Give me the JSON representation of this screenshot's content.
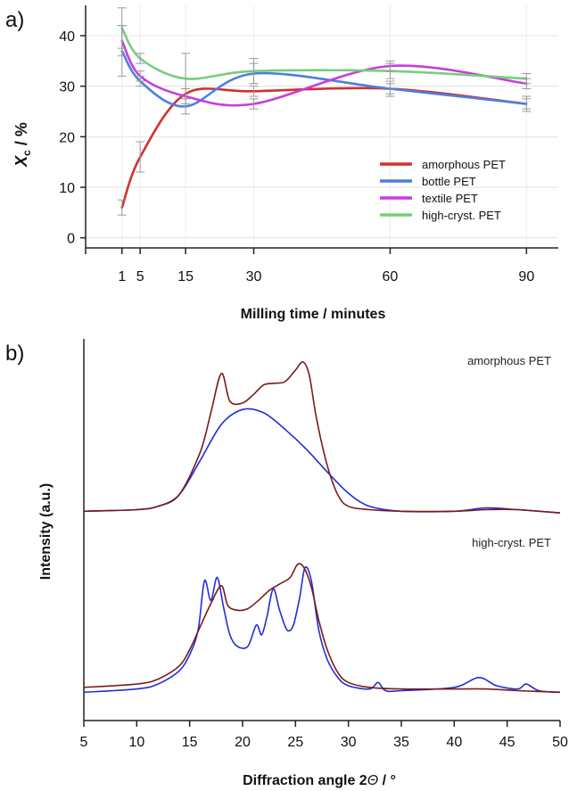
{
  "panel_labels": {
    "a": "a)",
    "b": "b)"
  },
  "chart_data": [
    {
      "type": "line",
      "xlabel": "Milling time / minutes",
      "ylabel": "X",
      "ylabel_sub": "c",
      "ylabel_unit": " / %",
      "x_ticks": [
        1,
        5,
        15,
        30,
        60,
        90
      ],
      "y_ticks": [
        0,
        10,
        20,
        30,
        40
      ],
      "xlim": [
        -7,
        97
      ],
      "ylim": [
        -2,
        46
      ],
      "grid": true,
      "legend_position": "bottom-right",
      "x": [
        1,
        5,
        15,
        30,
        60,
        90
      ],
      "series": [
        {
          "name": "amorphous PET",
          "color": "#d32f2f",
          "values": [
            6,
            16,
            28.5,
            29,
            29.5,
            26.5
          ],
          "errors": [
            1.5,
            3,
            1,
            1,
            1,
            1
          ]
        },
        {
          "name": "bottle PET",
          "color": "#4a7fe0",
          "values": [
            37,
            31,
            26,
            32.5,
            29.5,
            26.5
          ],
          "errors": [
            5,
            1,
            1.5,
            2,
            1.5,
            1.5
          ]
        },
        {
          "name": "textile PET",
          "color": "#c93be0",
          "values": [
            39,
            32,
            28,
            26.5,
            34,
            30.5
          ],
          "errors": [
            3,
            1,
            1.5,
            1,
            1,
            1
          ]
        },
        {
          "name": "high-cryst. PET",
          "color": "#74cf7e",
          "values": [
            41.5,
            35.5,
            31.5,
            33,
            33,
            31.5
          ],
          "errors": [
            4,
            1,
            5,
            2.5,
            1.5,
            1
          ]
        }
      ]
    },
    {
      "type": "line",
      "xlabel": "Diffraction angle 2",
      "xlabel_symbol": "Θ",
      "xlabel_unit": " / °",
      "ylabel": "Intensity (a.u.)",
      "x_ticks": [
        5,
        10,
        15,
        20,
        25,
        30,
        35,
        40,
        45,
        50
      ],
      "xlim": [
        5,
        50
      ],
      "grid": false,
      "groups": [
        {
          "label": "amorphous PET",
          "series": [
            {
              "color": "#1f2fd6",
              "x": [
                5,
                10,
                12,
                14,
                16,
                18,
                20,
                22,
                24,
                26,
                28,
                30,
                32,
                35,
                40,
                43,
                46,
                50
              ],
              "y": [
                0.02,
                0.03,
                0.05,
                0.12,
                0.33,
                0.55,
                0.64,
                0.62,
                0.52,
                0.4,
                0.26,
                0.13,
                0.05,
                0.02,
                0.02,
                0.04,
                0.03,
                0.01
              ]
            },
            {
              "color": "#7a1a1a",
              "x": [
                5,
                10,
                12,
                14,
                16,
                17,
                18,
                18.8,
                20,
                21,
                22,
                23,
                24,
                25,
                25.7,
                26.3,
                27,
                28,
                29,
                30,
                32,
                35,
                40,
                43,
                46,
                50
              ],
              "y": [
                0.02,
                0.03,
                0.05,
                0.12,
                0.38,
                0.62,
                0.86,
                0.69,
                0.68,
                0.73,
                0.79,
                0.8,
                0.81,
                0.88,
                0.93,
                0.85,
                0.58,
                0.3,
                0.12,
                0.05,
                0.03,
                0.02,
                0.02,
                0.03,
                0.03,
                0.01
              ]
            }
          ]
        },
        {
          "label": "high-cryst. PET",
          "series": [
            {
              "color": "#1f2fd6",
              "x": [
                5,
                10,
                12,
                14,
                15,
                15.8,
                16.4,
                17,
                17.6,
                18.2,
                18.8,
                19.5,
                20.5,
                21.3,
                21.8,
                22.3,
                22.9,
                23.5,
                24.2,
                24.8,
                25.4,
                25.9,
                26.5,
                27.2,
                28,
                29,
                30,
                32,
                32.8,
                33.5,
                35,
                40,
                42.3,
                44,
                46,
                46.8,
                48,
                50
              ],
              "y": [
                0.02,
                0.04,
                0.07,
                0.15,
                0.25,
                0.4,
                0.7,
                0.58,
                0.72,
                0.54,
                0.37,
                0.3,
                0.3,
                0.43,
                0.37,
                0.48,
                0.65,
                0.52,
                0.4,
                0.43,
                0.6,
                0.78,
                0.7,
                0.4,
                0.22,
                0.11,
                0.06,
                0.04,
                0.08,
                0.03,
                0.03,
                0.05,
                0.11,
                0.06,
                0.04,
                0.07,
                0.03,
                0.02
              ]
            },
            {
              "color": "#7a1a1a",
              "x": [
                5,
                10,
                12,
                14,
                15,
                16,
                17,
                18,
                18.6,
                19.5,
                20.5,
                21.5,
                22.5,
                23.5,
                24.5,
                25.2,
                25.8,
                26.5,
                27.2,
                28,
                29,
                30,
                32,
                35,
                40,
                43,
                46,
                50
              ],
              "y": [
                0.05,
                0.07,
                0.1,
                0.18,
                0.28,
                0.42,
                0.56,
                0.67,
                0.55,
                0.52,
                0.53,
                0.58,
                0.64,
                0.68,
                0.72,
                0.8,
                0.78,
                0.66,
                0.46,
                0.28,
                0.14,
                0.08,
                0.05,
                0.04,
                0.04,
                0.04,
                0.03,
                0.02
              ]
            }
          ]
        }
      ]
    }
  ]
}
